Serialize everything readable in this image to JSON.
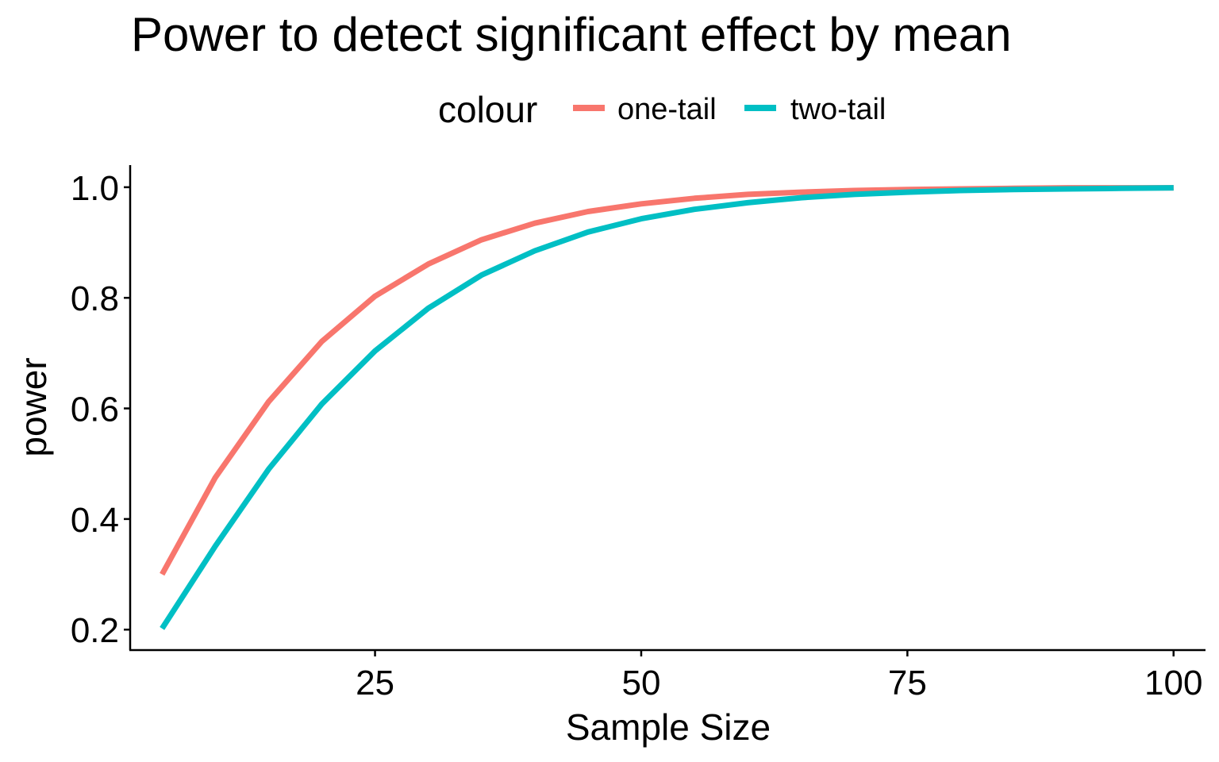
{
  "chart_data": {
    "type": "line",
    "title": "Power to detect significant effect by mean",
    "xlabel": "Sample Size",
    "ylabel": "power",
    "xlim": [
      2,
      103
    ],
    "ylim": [
      0.163,
      1.04
    ],
    "x_ticks": [
      25,
      50,
      75,
      100
    ],
    "y_ticks": [
      0.2,
      0.4,
      0.6,
      0.8,
      1.0
    ],
    "y_tick_labels": [
      "0.2",
      "0.4",
      "0.6",
      "0.8",
      "1.0"
    ],
    "grid": false,
    "legend": {
      "title": "colour",
      "position": "top",
      "entries": [
        "one-tail",
        "two-tail"
      ]
    },
    "x": [
      5,
      10,
      15,
      20,
      25,
      30,
      35,
      40,
      45,
      50,
      55,
      60,
      65,
      70,
      75,
      80,
      85,
      90,
      95,
      100
    ],
    "series": [
      {
        "name": "one-tail",
        "color": "#F8766D",
        "values": [
          0.3,
          0.475,
          0.612,
          0.721,
          0.803,
          0.861,
          0.905,
          0.935,
          0.956,
          0.97,
          0.98,
          0.987,
          0.991,
          0.994,
          0.996,
          0.997,
          0.998,
          0.999,
          0.999,
          0.999
        ]
      },
      {
        "name": "two-tail",
        "color": "#00BFC4",
        "values": [
          0.202,
          0.351,
          0.49,
          0.608,
          0.704,
          0.781,
          0.841,
          0.885,
          0.919,
          0.943,
          0.96,
          0.972,
          0.981,
          0.987,
          0.991,
          0.994,
          0.996,
          0.997,
          0.998,
          0.999
        ]
      }
    ]
  }
}
